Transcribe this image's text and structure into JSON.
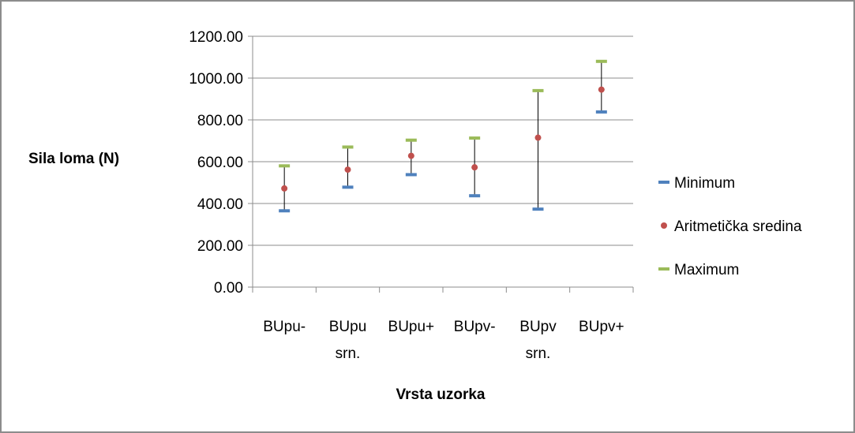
{
  "chart_data": {
    "type": "scatter",
    "categories": [
      [
        "BUpu-"
      ],
      [
        "BUpu",
        "srn."
      ],
      [
        "BUpu+"
      ],
      [
        "BUpv-"
      ],
      [
        "BUpv",
        "srn."
      ],
      [
        "BUpv+"
      ]
    ],
    "series": [
      {
        "name": "Minimum",
        "values": [
          365,
          478,
          538,
          437,
          373,
          838
        ],
        "color": "#4f81bd",
        "marker": "dash"
      },
      {
        "name": "Aritmetička sredina",
        "values": [
          472,
          562,
          628,
          573,
          715,
          945
        ],
        "color": "#c0504d",
        "marker": "circle"
      },
      {
        "name": "Maximum",
        "values": [
          580,
          670,
          703,
          713,
          940,
          1080
        ],
        "color": "#9bbb59",
        "marker": "dash"
      }
    ],
    "xlabel": "Vrsta uzorka",
    "ylabel": "Sila loma (N)",
    "ylim": [
      0,
      1200
    ],
    "yticks": [
      "0.00",
      "200.00",
      "400.00",
      "600.00",
      "800.00",
      "1000.00",
      "1200.00"
    ],
    "grid": true,
    "error_bars": "high-low lines from Minimum to Maximum",
    "legend_position": "right"
  }
}
